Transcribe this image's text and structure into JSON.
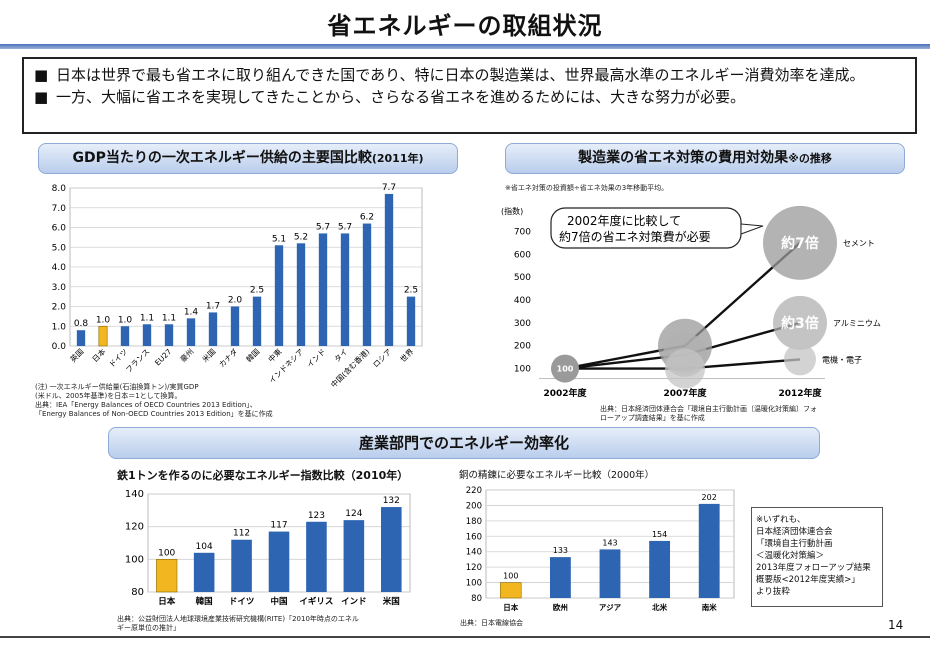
{
  "title": "省エネルギーの取組状況",
  "bullets": [
    {
      "mark": "■",
      "text": "日本は世界で最も省エネに取り組んできた国であり、特に日本の製造業は、世界最高水準のエネルギー消費効率を達成。"
    },
    {
      "mark": "■",
      "text": "一方、大幅に省エネを実現してきたことから、さらなる省エネを進めるためには、大きな努力が必要。"
    }
  ],
  "section_bottom_title": "産業部門でのエネルギー効率化",
  "notes": {
    "chart1": [
      "(注) 一次エネルギー供給量(石油換算トン)/実質GDP",
      "(米ドル、2005年基準)を日本＝1として換算。",
      "出典：IEA「Energy Balances of OECD Countries 2013 Edition」、",
      "「Energy Balances of Non-OECD Countries 2013 Edition」を基に作成"
    ],
    "chart2_top": "※省エネ対策の投資額÷省エネ効果の3年移動平均。",
    "chart2_source": [
      "出典：日本経済団体連合会「環境自主行動計画〔温暖化対策編〕フォ",
      "ローアップ調査結果」を基に作成"
    ],
    "chart3_source": [
      "出典：公益財団法人地球環境産業技術研究機構(RITE)「2010年時点のエネル",
      "ギー原単位の推計」"
    ],
    "chart4_source": "出典：日本電線協会"
  },
  "note_box": [
    "※いずれも、",
    "日本経済団体連合会",
    "「環境自主行動計画",
    "＜温暖化対策編＞",
    "2013年度フォローアップ結果",
    "概要版<2012年度実績>」",
    "より抜粋"
  ],
  "page_number": "14",
  "colors": {
    "bar_blue": "#2d65b3",
    "bar_japan": "#f2b620",
    "pill": "#c9d8ef"
  },
  "chart_data": [
    {
      "type": "bar",
      "title": "GDP当たりの一次エネルギー供給の主要国比較",
      "title_suffix": "(2011年)",
      "categories": [
        "英国",
        "日本",
        "ドイツ",
        "フランス",
        "EU27",
        "豪州",
        "米国",
        "カナダ",
        "韓国",
        "中東",
        "インドネシア",
        "インド",
        "タイ",
        "中国(含む香港)",
        "ロシア",
        "世界"
      ],
      "values": [
        0.8,
        1.0,
        1.0,
        1.1,
        1.1,
        1.4,
        1.7,
        2.0,
        2.5,
        5.1,
        5.2,
        5.7,
        5.7,
        6.2,
        7.7,
        2.5
      ],
      "value_labels": [
        "0.8",
        "1.0",
        "1.0",
        "1.1",
        "1.1",
        "1.4",
        "1.7",
        "2.0",
        "2.5",
        "5.1",
        "5.2",
        "5.7",
        "5.7",
        "6.2",
        "7.7",
        "2.5"
      ],
      "highlight_index": 1,
      "yticks": [
        "0.0",
        "1.0",
        "2.0",
        "3.0",
        "4.0",
        "5.0",
        "6.0",
        "7.0",
        "8.0"
      ],
      "ylim": [
        0,
        8
      ],
      "grid": true
    },
    {
      "type": "scatter",
      "title": "製造業の省エネ対策の費用対効果",
      "title_suffix": "※の推移",
      "ylabel": "(指数)",
      "xticks": [
        "2002年度",
        "2007年度",
        "2012年度"
      ],
      "yticks": [
        "100",
        "200",
        "300",
        "400",
        "500",
        "600",
        "700"
      ],
      "ylim": [
        50,
        750
      ],
      "callout": [
        "2002年度に比較して",
        "約7倍の省エネ対策費が必要"
      ],
      "series": [
        {
          "name": "セメント",
          "points": [
            {
              "x": "2002年度",
              "y": 100
            },
            {
              "x": "2007年度",
              "y": 200
            },
            {
              "x": "2012年度",
              "y": 650
            }
          ],
          "end_label": "約7倍"
        },
        {
          "name": "アルミニウム",
          "points": [
            {
              "x": "2002年度",
              "y": 100
            },
            {
              "x": "2007年度",
              "y": 160
            },
            {
              "x": "2012年度",
              "y": 300
            }
          ],
          "end_label": "約3倍"
        },
        {
          "name": "電機・電子",
          "points": [
            {
              "x": "2002年度",
              "y": 100
            },
            {
              "x": "2007年度",
              "y": 100
            },
            {
              "x": "2012年度",
              "y": 140
            }
          ],
          "end_label": ""
        }
      ],
      "start_label": "100"
    },
    {
      "type": "bar",
      "title": "鉄1トンを作るのに必要なエネルギー指数比較（2010年）",
      "categories": [
        "日本",
        "韓国",
        "ドイツ",
        "中国",
        "イギリス",
        "インド",
        "米国"
      ],
      "values": [
        100,
        104,
        112,
        117,
        123,
        124,
        132
      ],
      "highlight_index": 0,
      "yticks": [
        "80",
        "100",
        "120",
        "140"
      ],
      "ylim": [
        80,
        140
      ],
      "grid": true
    },
    {
      "type": "bar",
      "title": "銅の精錬に必要なエネルギー比較（2000年）",
      "categories": [
        "日本",
        "欧州",
        "アジア",
        "北米",
        "南米"
      ],
      "values": [
        100,
        133,
        143,
        154,
        202
      ],
      "highlight_index": 0,
      "yticks": [
        "80",
        "100",
        "120",
        "140",
        "160",
        "180",
        "200",
        "220"
      ],
      "ylim": [
        80,
        220
      ],
      "grid": true
    }
  ]
}
